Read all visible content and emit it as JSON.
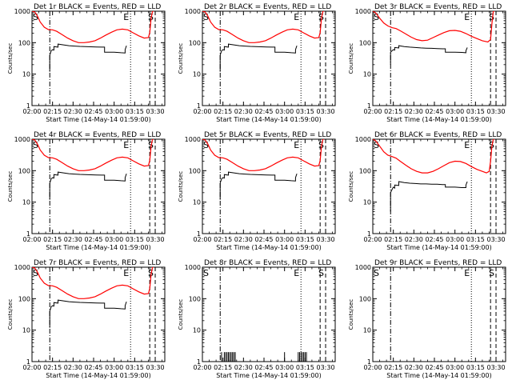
{
  "figure": {
    "ylabel": "Counts/sec",
    "xlabel": "Start Time (14-May-14 01:59:00)",
    "x_ticks": [
      "02:00",
      "02:15",
      "02:30",
      "02:45",
      "03:00",
      "03:15",
      "03:30"
    ],
    "y_ticks": [
      "1",
      "10",
      "100",
      "1000"
    ],
    "marker_labels": [
      "S",
      "E",
      "S"
    ]
  },
  "colors": {
    "events": "#000000",
    "lld": "#ff0000"
  },
  "chart_data": [
    {
      "type": "line",
      "title": "Det 1r BLACK = Events, RED = LLD",
      "events_profile": "a",
      "lld_profile": "a",
      "yscale": "log",
      "ylim": [
        1,
        1000
      ],
      "xlim": [
        "02:00",
        "03:37"
      ]
    },
    {
      "type": "line",
      "title": "Det 2r BLACK = Events, RED = LLD",
      "events_profile": "a",
      "lld_profile": "a",
      "yscale": "log",
      "ylim": [
        1,
        1000
      ],
      "xlim": [
        "02:00",
        "03:37"
      ]
    },
    {
      "type": "line",
      "title": "Det 3r BLACK = Events, RED = LLD",
      "events_profile": "b",
      "lld_profile": "b",
      "yscale": "log",
      "ylim": [
        1,
        1000
      ],
      "xlim": [
        "02:00",
        "03:37"
      ]
    },
    {
      "type": "line",
      "title": "Det 4r BLACK = Events, RED = LLD",
      "events_profile": "a",
      "lld_profile": "a",
      "yscale": "log",
      "ylim": [
        1,
        1000
      ],
      "xlim": [
        "02:00",
        "03:37"
      ]
    },
    {
      "type": "line",
      "title": "Det 5r BLACK = Events, RED = LLD",
      "events_profile": "a",
      "lld_profile": "a",
      "yscale": "log",
      "ylim": [
        1,
        1000
      ],
      "xlim": [
        "02:00",
        "03:37"
      ]
    },
    {
      "type": "line",
      "title": "Det 6r BLACK = Events, RED = LLD",
      "events_profile": "c",
      "lld_profile": "c",
      "yscale": "log",
      "ylim": [
        1,
        1000
      ],
      "xlim": [
        "02:00",
        "03:37"
      ]
    },
    {
      "type": "line",
      "title": "Det 7r BLACK = Events, RED = LLD",
      "events_profile": "a",
      "lld_profile": "a",
      "yscale": "log",
      "ylim": [
        1,
        1000
      ],
      "xlim": [
        "02:00",
        "03:37"
      ]
    },
    {
      "type": "line",
      "title": "Det 8r BLACK = Events, RED = LLD",
      "events_profile": "spikes",
      "lld_profile": "none",
      "yscale": "log",
      "ylim": [
        1,
        1000
      ],
      "xlim": [
        "02:00",
        "03:37"
      ]
    },
    {
      "type": "line",
      "title": "Det 9r BLACK = Events, RED = LLD",
      "events_profile": "none",
      "lld_profile": "none",
      "yscale": "log",
      "ylim": [
        1,
        1000
      ],
      "xlim": [
        "02:00",
        "03:37"
      ]
    }
  ],
  "vertical_markers": [
    {
      "time": "02:13",
      "style": "dash-dot"
    },
    {
      "time": "03:12",
      "style": "dotted"
    },
    {
      "time": "03:26",
      "style": "dashed"
    },
    {
      "time": "03:30",
      "style": "dashed"
    }
  ],
  "profiles": {
    "lld": {
      "a": [
        [
          "02:00",
          1000
        ],
        [
          "02:02",
          950
        ],
        [
          "02:04",
          700
        ],
        [
          "02:06",
          450
        ],
        [
          "02:09",
          310
        ],
        [
          "02:12",
          260
        ],
        [
          "02:15",
          255
        ],
        [
          "02:18",
          230
        ],
        [
          "02:22",
          180
        ],
        [
          "02:26",
          140
        ],
        [
          "02:30",
          115
        ],
        [
          "02:34",
          100
        ],
        [
          "02:38",
          100
        ],
        [
          "02:42",
          105
        ],
        [
          "02:46",
          115
        ],
        [
          "02:50",
          140
        ],
        [
          "02:54",
          175
        ],
        [
          "02:58",
          215
        ],
        [
          "03:02",
          255
        ],
        [
          "03:06",
          270
        ],
        [
          "03:10",
          255
        ],
        [
          "03:14",
          205
        ],
        [
          "03:18",
          165
        ],
        [
          "03:22",
          140
        ],
        [
          "03:25",
          145
        ],
        [
          "03:26",
          210
        ],
        [
          "03:27",
          600
        ],
        [
          "03:28",
          1000
        ],
        [
          "03:29",
          1000
        ]
      ],
      "b": [
        [
          "02:00",
          1000
        ],
        [
          "02:02",
          900
        ],
        [
          "02:05",
          600
        ],
        [
          "02:08",
          420
        ],
        [
          "02:11",
          340
        ],
        [
          "02:14",
          300
        ],
        [
          "02:17",
          280
        ],
        [
          "02:20",
          240
        ],
        [
          "02:24",
          190
        ],
        [
          "02:28",
          150
        ],
        [
          "02:32",
          125
        ],
        [
          "02:36",
          115
        ],
        [
          "02:40",
          120
        ],
        [
          "02:44",
          145
        ],
        [
          "02:48",
          175
        ],
        [
          "02:52",
          210
        ],
        [
          "02:56",
          240
        ],
        [
          "03:00",
          245
        ],
        [
          "03:04",
          230
        ],
        [
          "03:08",
          195
        ],
        [
          "03:12",
          160
        ],
        [
          "03:16",
          135
        ],
        [
          "03:20",
          115
        ],
        [
          "03:24",
          105
        ],
        [
          "03:26",
          125
        ],
        [
          "03:27",
          400
        ],
        [
          "03:28",
          1000
        ],
        [
          "03:29",
          1000
        ]
      ],
      "c": [
        [
          "02:00",
          1000
        ],
        [
          "02:02",
          900
        ],
        [
          "02:05",
          600
        ],
        [
          "02:08",
          400
        ],
        [
          "02:11",
          310
        ],
        [
          "02:14",
          280
        ],
        [
          "02:17",
          250
        ],
        [
          "02:20",
          200
        ],
        [
          "02:24",
          150
        ],
        [
          "02:28",
          115
        ],
        [
          "02:32",
          95
        ],
        [
          "02:36",
          85
        ],
        [
          "02:40",
          85
        ],
        [
          "02:44",
          95
        ],
        [
          "02:48",
          115
        ],
        [
          "02:52",
          145
        ],
        [
          "02:56",
          180
        ],
        [
          "03:00",
          200
        ],
        [
          "03:04",
          195
        ],
        [
          "03:08",
          170
        ],
        [
          "03:12",
          135
        ],
        [
          "03:16",
          110
        ],
        [
          "03:20",
          95
        ],
        [
          "03:23",
          85
        ],
        [
          "03:25",
          95
        ],
        [
          "03:26",
          200
        ],
        [
          "03:27",
          600
        ],
        [
          "03:28",
          1000
        ],
        [
          "03:29",
          1000
        ]
      ]
    },
    "events": {
      "a": [
        [
          "02:13",
          12
        ],
        [
          "02:13",
          40
        ],
        [
          "02:14",
          55
        ],
        [
          "02:15",
          60
        ],
        [
          "02:16",
          58
        ],
        [
          "02:16",
          75
        ],
        [
          "02:19",
          72
        ],
        [
          "02:19",
          90
        ],
        [
          "02:23",
          85
        ],
        [
          "02:27",
          80
        ],
        [
          "02:31",
          78
        ],
        [
          "02:35",
          76
        ],
        [
          "02:39",
          75
        ],
        [
          "02:43",
          74
        ],
        [
          "02:47",
          73
        ],
        [
          "02:51",
          72
        ],
        [
          "02:53",
          72
        ],
        [
          "02:53",
          50
        ],
        [
          "03:00",
          50
        ],
        [
          "03:05",
          48
        ],
        [
          "03:08",
          47
        ],
        [
          "03:08",
          60
        ],
        [
          "03:09",
          80
        ]
      ],
      "b": [
        [
          "02:13",
          20
        ],
        [
          "02:13",
          50
        ],
        [
          "02:14",
          55
        ],
        [
          "02:15",
          60
        ],
        [
          "02:16",
          58
        ],
        [
          "02:16",
          70
        ],
        [
          "02:19",
          68
        ],
        [
          "02:19",
          80
        ],
        [
          "02:23",
          75
        ],
        [
          "02:27",
          72
        ],
        [
          "02:31",
          70
        ],
        [
          "02:35",
          68
        ],
        [
          "02:39",
          67
        ],
        [
          "02:43",
          66
        ],
        [
          "02:47",
          65
        ],
        [
          "02:51",
          64
        ],
        [
          "02:53",
          64
        ],
        [
          "02:53",
          50
        ],
        [
          "03:00",
          50
        ],
        [
          "03:05",
          49
        ],
        [
          "03:08",
          48
        ],
        [
          "03:08",
          55
        ],
        [
          "03:09",
          70
        ]
      ],
      "c": [
        [
          "02:13",
          5
        ],
        [
          "02:13",
          20
        ],
        [
          "02:14",
          25
        ],
        [
          "02:15",
          30
        ],
        [
          "02:16",
          28
        ],
        [
          "02:16",
          35
        ],
        [
          "02:19",
          34
        ],
        [
          "02:19",
          45
        ],
        [
          "02:23",
          42
        ],
        [
          "02:27",
          40
        ],
        [
          "02:31",
          39
        ],
        [
          "02:35",
          38
        ],
        [
          "02:39",
          38
        ],
        [
          "02:43",
          37
        ],
        [
          "02:47",
          37
        ],
        [
          "02:51",
          36
        ],
        [
          "02:53",
          36
        ],
        [
          "02:53",
          30
        ],
        [
          "03:00",
          30
        ],
        [
          "03:05",
          29
        ],
        [
          "03:08",
          29
        ],
        [
          "03:08",
          35
        ],
        [
          "03:09",
          45
        ]
      ],
      "spikes": [
        "02:14",
        "02:16",
        "02:17",
        "02:18",
        "02:19",
        "02:20",
        "02:21",
        "02:22",
        "02:23",
        "02:24",
        "03:00",
        "03:10",
        "03:11",
        "03:12",
        "03:13",
        "03:14",
        "03:15",
        "03:16"
      ]
    }
  }
}
